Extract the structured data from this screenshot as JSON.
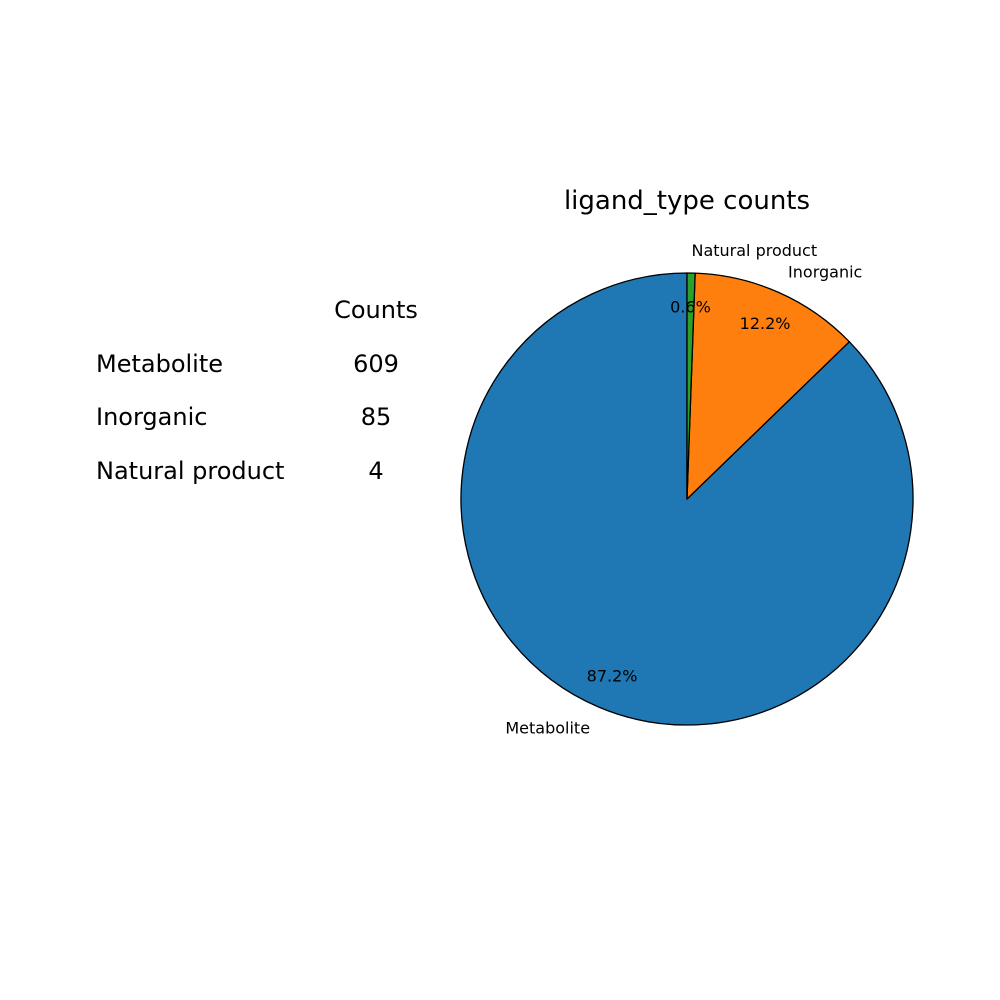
{
  "table": {
    "header": "Counts",
    "rows": [
      {
        "label": "Metabolite",
        "count": "609"
      },
      {
        "label": "Inorganic",
        "count": "85"
      },
      {
        "label": "Natural product",
        "count": "4"
      }
    ]
  },
  "chart_data": {
    "type": "pie",
    "title": "ligand_type counts",
    "categories": [
      "Metabolite",
      "Inorganic",
      "Natural product"
    ],
    "values": [
      609,
      85,
      4
    ],
    "percent_labels": [
      "87.2%",
      "12.2%",
      "0.6%"
    ],
    "colors": [
      "#1f77b4",
      "#ff7f0e",
      "#2ca02c"
    ],
    "edge_color": "#000000",
    "start_angle_deg": 90,
    "direction": "counterclockwise"
  }
}
